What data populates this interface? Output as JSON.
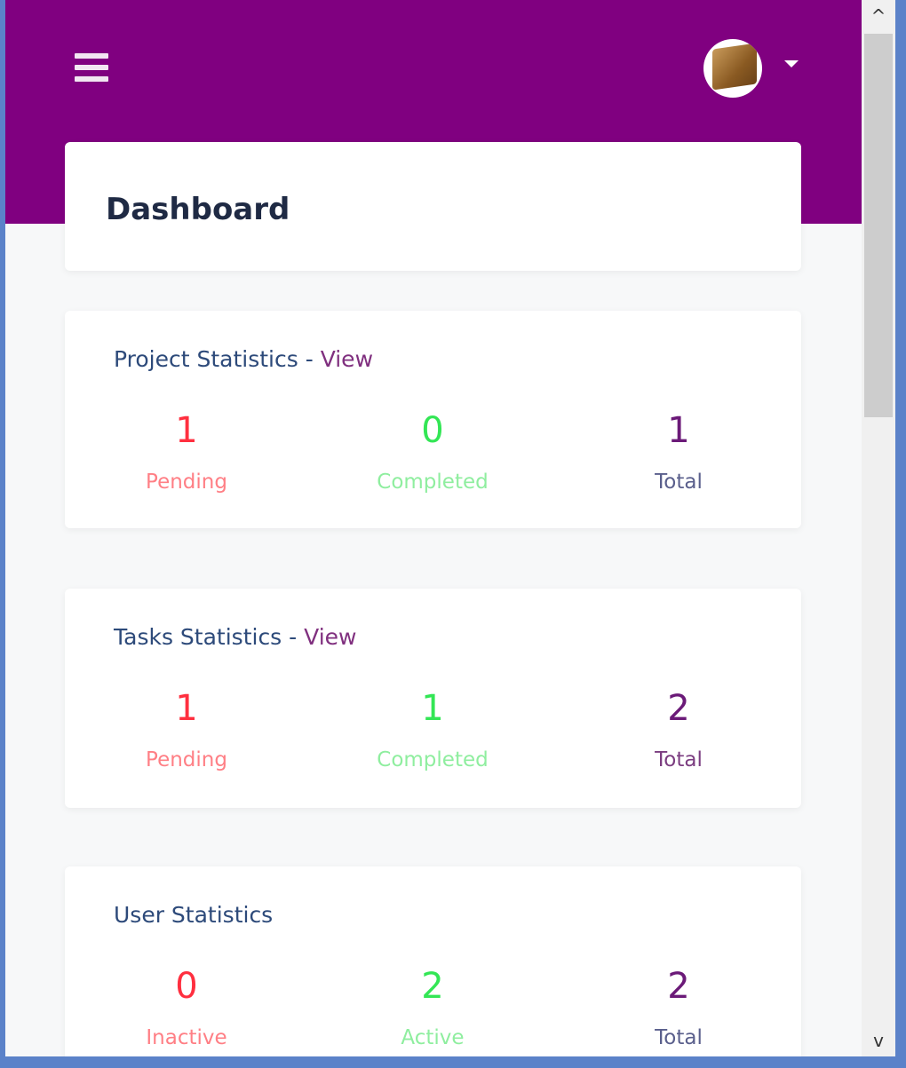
{
  "header": {
    "menu_icon": "hamburger-icon",
    "avatar_icon": "user-avatar",
    "dropdown_icon": "caret-down-icon",
    "background_color": "#800080"
  },
  "page": {
    "title": "Dashboard"
  },
  "cards": [
    {
      "title": "Project Statistics",
      "separator": " - ",
      "link": "View",
      "stats": [
        {
          "value": "1",
          "label": "Pending"
        },
        {
          "value": "0",
          "label": "Completed"
        },
        {
          "value": "1",
          "label": "Total"
        }
      ]
    },
    {
      "title": "Tasks Statistics",
      "separator": " - ",
      "link": "View",
      "stats": [
        {
          "value": "1",
          "label": "Pending"
        },
        {
          "value": "1",
          "label": "Completed"
        },
        {
          "value": "2",
          "label": "Total"
        }
      ]
    },
    {
      "title": "User Statistics",
      "stats": [
        {
          "value": "0",
          "label": "Inactive"
        },
        {
          "value": "2",
          "label": "Active"
        },
        {
          "value": "2",
          "label": "Total"
        }
      ]
    }
  ],
  "colors": {
    "pending": "#ff2f3f",
    "completed": "#33e655",
    "total": "#6b1a78"
  },
  "scrollbar": {
    "up": "^",
    "down": "v"
  }
}
